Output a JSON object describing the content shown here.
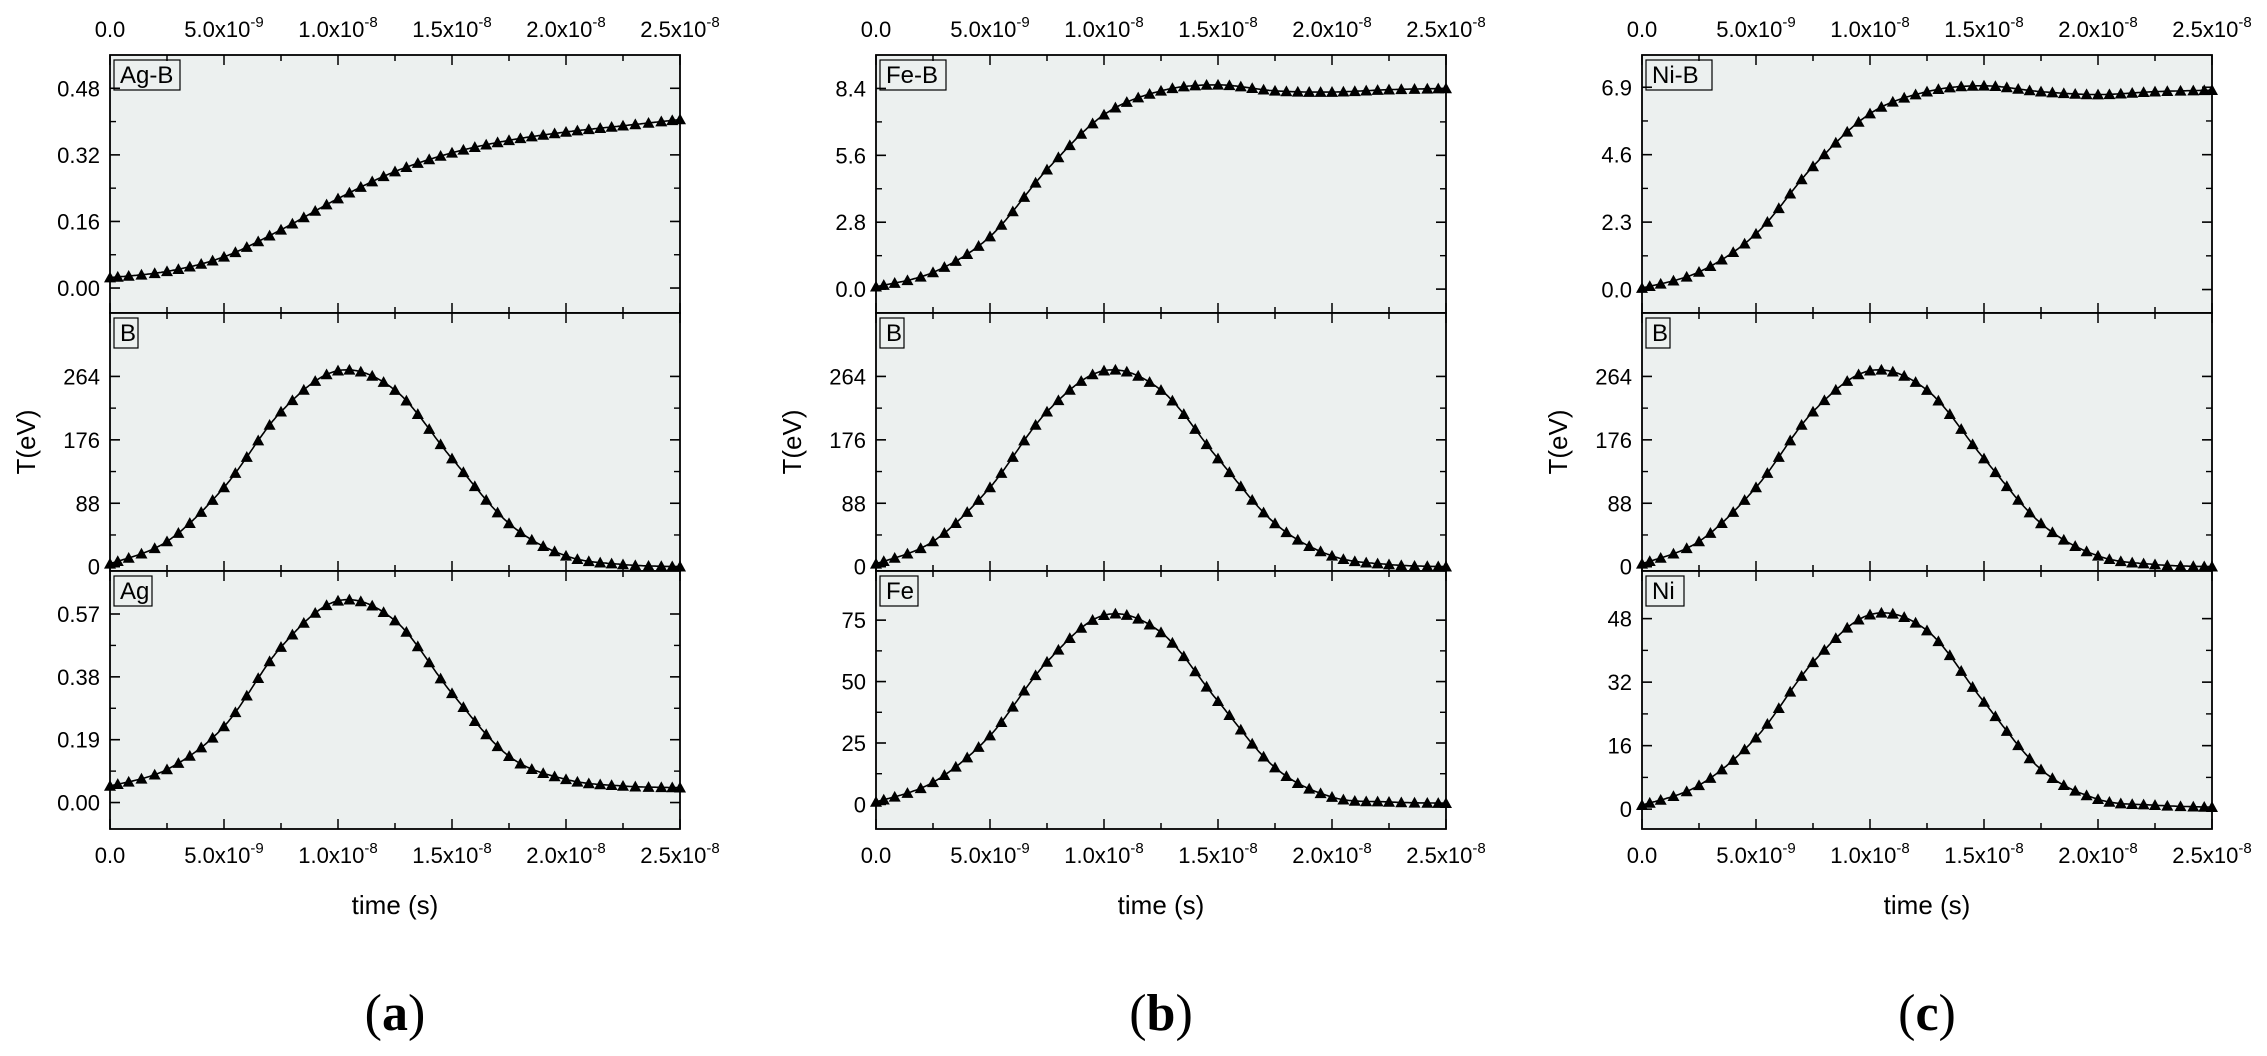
{
  "figure": {
    "panels": [
      {
        "letter": "a",
        "ylabel": "T(eV)",
        "xlabel": "time (s)"
      },
      {
        "letter": "b",
        "ylabel": "T(eV)",
        "xlabel": "time (s)"
      },
      {
        "letter": "c",
        "ylabel": "T(eV)",
        "xlabel": "time (s)"
      }
    ],
    "x_ticks_bottom": [
      "0.0",
      "5.0x10^-9",
      "1.0x10^-8",
      "1.5x10^-8",
      "2.0x10^-8",
      "2.5x10^-8"
    ],
    "x_ticks_top": [
      "0.0",
      "5.0x10^-9",
      "1.0x10^-8",
      "1.5x10^-8",
      "2.0x10^-8",
      "2.5x10^-8"
    ],
    "colors": {
      "plot_background": "#ecf0ef",
      "marker": "#000000",
      "line": "#000000"
    },
    "marker": "filled-triangle"
  },
  "chart_data": [
    {
      "panel": "a",
      "type": "line",
      "xlabel": "time (s)",
      "ylabel": "T(eV)",
      "xlim": [
        0,
        2.5e-08
      ],
      "subplots": [
        {
          "label": "Ag-B",
          "yticks": [
            "0.00",
            "0.16",
            "0.32",
            "0.48"
          ],
          "ylim": [
            -0.06,
            0.56
          ],
          "points": [
            [
              0,
              0.025
            ],
            [
              2.5e-09,
              0.04
            ],
            [
              5e-09,
              0.075
            ],
            [
              7.5e-09,
              0.14
            ],
            [
              1e-08,
              0.215
            ],
            [
              1.25e-08,
              0.28
            ],
            [
              1.5e-08,
              0.325
            ],
            [
              1.75e-08,
              0.355
            ],
            [
              2e-08,
              0.375
            ],
            [
              2.25e-08,
              0.39
            ],
            [
              2.5e-08,
              0.405
            ]
          ]
        },
        {
          "label": "B",
          "yticks": [
            "0",
            "88",
            "176",
            "264"
          ],
          "ylim": [
            -6,
            352
          ],
          "points": [
            [
              0,
              4
            ],
            [
              2.5e-09,
              35
            ],
            [
              5e-09,
              110
            ],
            [
              7.5e-09,
              215
            ],
            [
              1e-08,
              272
            ],
            [
              1.25e-08,
              245
            ],
            [
              1.5e-08,
              150
            ],
            [
              1.75e-08,
              60
            ],
            [
              2e-08,
              15
            ],
            [
              2.25e-08,
              3
            ],
            [
              2.5e-08,
              0
            ]
          ]
        },
        {
          "label": "Ag",
          "yticks": [
            "0.00",
            "0.19",
            "0.38",
            "0.57"
          ],
          "ylim": [
            -0.08,
            0.7
          ],
          "points": [
            [
              0,
              0.05
            ],
            [
              2.5e-09,
              0.1
            ],
            [
              5e-09,
              0.23
            ],
            [
              7.5e-09,
              0.47
            ],
            [
              1e-08,
              0.61
            ],
            [
              1.25e-08,
              0.55
            ],
            [
              1.5e-08,
              0.33
            ],
            [
              1.75e-08,
              0.14
            ],
            [
              2e-08,
              0.07
            ],
            [
              2.25e-08,
              0.05
            ],
            [
              2.5e-08,
              0.045
            ]
          ]
        }
      ]
    },
    {
      "panel": "b",
      "type": "line",
      "xlabel": "time (s)",
      "ylabel": "T(eV)",
      "xlim": [
        0,
        2.5e-08
      ],
      "subplots": [
        {
          "label": "Fe-B",
          "yticks": [
            "0.0",
            "2.8",
            "5.6",
            "8.4"
          ],
          "ylim": [
            -1.0,
            9.8
          ],
          "points": [
            [
              0,
              0.1
            ],
            [
              2.5e-09,
              0.7
            ],
            [
              5e-09,
              2.2
            ],
            [
              7.5e-09,
              5.0
            ],
            [
              1e-08,
              7.3
            ],
            [
              1.25e-08,
              8.3
            ],
            [
              1.5e-08,
              8.55
            ],
            [
              1.75e-08,
              8.3
            ],
            [
              2e-08,
              8.25
            ],
            [
              2.25e-08,
              8.35
            ],
            [
              2.5e-08,
              8.4
            ]
          ]
        },
        {
          "label": "B",
          "yticks": [
            "0",
            "88",
            "176",
            "264"
          ],
          "ylim": [
            -6,
            352
          ],
          "points": [
            [
              0,
              4
            ],
            [
              2.5e-09,
              35
            ],
            [
              5e-09,
              110
            ],
            [
              7.5e-09,
              215
            ],
            [
              1e-08,
              272
            ],
            [
              1.25e-08,
              245
            ],
            [
              1.5e-08,
              150
            ],
            [
              1.75e-08,
              60
            ],
            [
              2e-08,
              15
            ],
            [
              2.25e-08,
              3
            ],
            [
              2.5e-08,
              0
            ]
          ]
        },
        {
          "label": "Fe",
          "yticks": [
            "0",
            "25",
            "50",
            "75"
          ],
          "ylim": [
            -10,
            95
          ],
          "points": [
            [
              0,
              1
            ],
            [
              2.5e-09,
              9
            ],
            [
              5e-09,
              28
            ],
            [
              7.5e-09,
              58
            ],
            [
              1e-08,
              77
            ],
            [
              1.25e-08,
              70
            ],
            [
              1.5e-08,
              42
            ],
            [
              1.75e-08,
              15
            ],
            [
              2e-08,
              3
            ],
            [
              2.25e-08,
              1
            ],
            [
              2.5e-08,
              0.5
            ]
          ]
        }
      ]
    },
    {
      "panel": "c",
      "type": "line",
      "xlabel": "time (s)",
      "ylabel": "T(eV)",
      "xlim": [
        0,
        2.5e-08
      ],
      "subplots": [
        {
          "label": "Ni-B",
          "yticks": [
            "0.0",
            "2.3",
            "4.6",
            "6.9"
          ],
          "ylim": [
            -0.8,
            8.0
          ],
          "points": [
            [
              0,
              0.05
            ],
            [
              2.5e-09,
              0.6
            ],
            [
              5e-09,
              1.9
            ],
            [
              7.5e-09,
              4.2
            ],
            [
              1e-08,
              6.0
            ],
            [
              1.25e-08,
              6.75
            ],
            [
              1.5e-08,
              6.95
            ],
            [
              1.75e-08,
              6.75
            ],
            [
              2e-08,
              6.65
            ],
            [
              2.25e-08,
              6.75
            ],
            [
              2.5e-08,
              6.8
            ]
          ]
        },
        {
          "label": "B",
          "yticks": [
            "0",
            "88",
            "176",
            "264"
          ],
          "ylim": [
            -6,
            352
          ],
          "points": [
            [
              0,
              4
            ],
            [
              2.5e-09,
              35
            ],
            [
              5e-09,
              110
            ],
            [
              7.5e-09,
              215
            ],
            [
              1e-08,
              272
            ],
            [
              1.25e-08,
              245
            ],
            [
              1.5e-08,
              150
            ],
            [
              1.75e-08,
              60
            ],
            [
              2e-08,
              15
            ],
            [
              2.25e-08,
              3
            ],
            [
              2.5e-08,
              0
            ]
          ]
        },
        {
          "label": "Ni",
          "yticks": [
            "0",
            "16",
            "32",
            "48"
          ],
          "ylim": [
            -5,
            60
          ],
          "points": [
            [
              0,
              1
            ],
            [
              2.5e-09,
              6
            ],
            [
              5e-09,
              18
            ],
            [
              7.5e-09,
              37
            ],
            [
              1e-08,
              49
            ],
            [
              1.25e-08,
              45
            ],
            [
              1.5e-08,
              27
            ],
            [
              1.75e-08,
              10
            ],
            [
              2e-08,
              2.5
            ],
            [
              2.25e-08,
              1
            ],
            [
              2.5e-08,
              0.5
            ]
          ]
        }
      ]
    }
  ]
}
